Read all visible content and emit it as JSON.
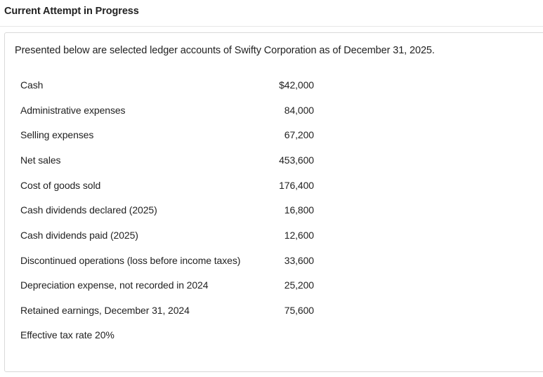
{
  "header": {
    "title": "Current Attempt in Progress"
  },
  "question": {
    "intro": "Presented below are selected ledger accounts of Swifty Corporation as of December 31, 2025.",
    "accounts": [
      {
        "name": "Cash",
        "amount": "$42,000"
      },
      {
        "name": "Administrative expenses",
        "amount": "84,000"
      },
      {
        "name": "Selling expenses",
        "amount": "67,200"
      },
      {
        "name": "Net sales",
        "amount": "453,600"
      },
      {
        "name": "Cost of goods sold",
        "amount": "176,400"
      },
      {
        "name": "Cash dividends declared (2025)",
        "amount": "16,800"
      },
      {
        "name": "Cash dividends paid (2025)",
        "amount": "12,600"
      },
      {
        "name": "Discontinued operations (loss before income taxes)",
        "amount": "33,600"
      },
      {
        "name": "Depreciation expense, not recorded in 2024",
        "amount": "25,200"
      },
      {
        "name": "Retained earnings, December 31, 2024",
        "amount": "75,600"
      }
    ],
    "tax_note": "Effective tax rate 20%"
  }
}
